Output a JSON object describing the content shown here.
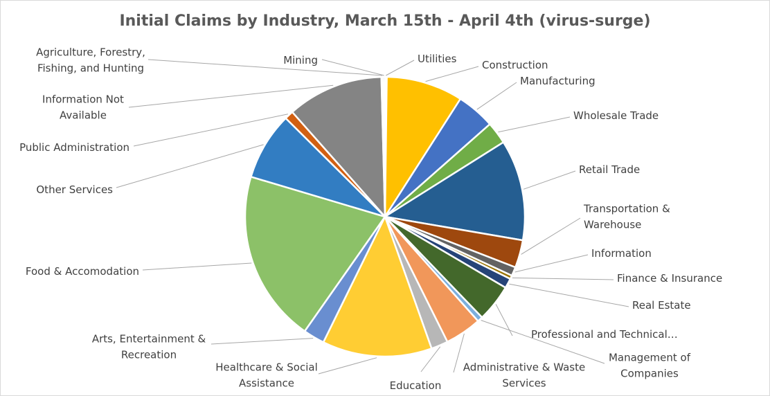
{
  "chart_data": {
    "type": "pie",
    "title": "Initial Claims by Industry, March 15th - April 4th (virus-surge)",
    "slices": [
      {
        "label": "Utilities",
        "value": 0.2,
        "color": "#ffc000"
      },
      {
        "label": "Construction",
        "value": 8.6,
        "color": "#ffc000"
      },
      {
        "label": "Manufacturing",
        "value": 4.3,
        "color": "#4472c4"
      },
      {
        "label": "Wholesale Trade",
        "value": 2.5,
        "color": "#70ad47"
      },
      {
        "label": "Retail Trade",
        "value": 11.3,
        "color": "#255e91"
      },
      {
        "label": "Transportation & Warehouse",
        "value": 3.1,
        "color": "#9e480e"
      },
      {
        "label": "Information",
        "value": 1.0,
        "color": "#636363"
      },
      {
        "label": "Finance & Insurance",
        "value": 0.4,
        "color": "#997300"
      },
      {
        "label": "Real Estate",
        "value": 1.1,
        "color": "#264478"
      },
      {
        "label": "Professional and Technical…",
        "value": 4.2,
        "color": "#43682b"
      },
      {
        "label": "Management of Companies",
        "value": 0.6,
        "color": "#7cafdd"
      },
      {
        "label": "Administrative & Waste Services",
        "value": 4.1,
        "color": "#f1975a"
      },
      {
        "label": "Education",
        "value": 1.9,
        "color": "#b7b7b7"
      },
      {
        "label": "Healthcare & Social Assistance",
        "value": 12.3,
        "color": "#ffcd33"
      },
      {
        "label": "Arts, Entertainment & Recreation",
        "value": 2.4,
        "color": "#698ed0"
      },
      {
        "label": "Food & Accomodation",
        "value": 19.3,
        "color": "#8cc168"
      },
      {
        "label": "Other Services",
        "value": 7.6,
        "color": "#327dc2"
      },
      {
        "label": "Public Administration",
        "value": 1.0,
        "color": "#d26012"
      },
      {
        "label": "Information Not Available",
        "value": 10.8,
        "color": "#848484"
      },
      {
        "label": "Agriculture, Forestry, Fishing, and Hunting",
        "value": 0.2,
        "color": "#ffc000"
      },
      {
        "label": "Mining",
        "value": 0.2,
        "color": "#4472c4"
      }
    ],
    "legend": "none"
  }
}
